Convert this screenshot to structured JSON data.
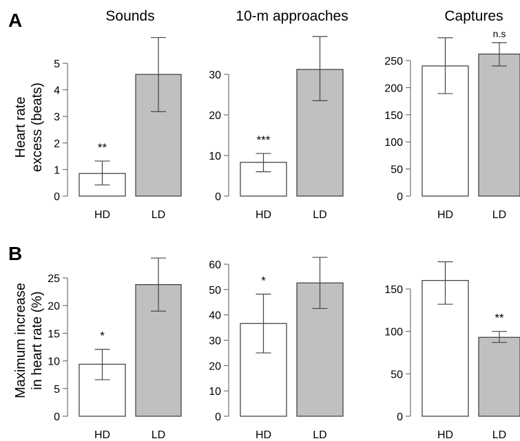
{
  "panel_letters": [
    "A",
    "B"
  ],
  "row_labels": {
    "A": [
      "Heart rate",
      "excess (beats)"
    ],
    "B": [
      "Maximum increase",
      "in heart rate (%)"
    ]
  },
  "column_titles": [
    "Sounds",
    "10-m approaches",
    "Captures"
  ],
  "colors": {
    "hd_fill": "#ffffff",
    "ld_fill": "#c0c0c0",
    "outline": "#444444",
    "error_bar": "#444444"
  },
  "chart_data": [
    {
      "type": "bar",
      "row": "A",
      "column": "Sounds",
      "title": "Sounds",
      "categories": [
        "HD",
        "LD"
      ],
      "values": [
        0.85,
        4.58
      ],
      "error_low": [
        0.42,
        3.18
      ],
      "error_high": [
        1.32,
        5.97
      ],
      "annotations": [
        "**",
        ""
      ],
      "ylim": [
        0,
        5
      ],
      "yticks": [
        0,
        1,
        2,
        3,
        4,
        5
      ],
      "ylabel": "Heart rate excess (beats)",
      "grid": false
    },
    {
      "type": "bar",
      "row": "A",
      "column": "10-m approaches",
      "title": "10-m approaches",
      "categories": [
        "HD",
        "LD"
      ],
      "values": [
        8.3,
        31.2
      ],
      "error_low": [
        6.0,
        23.5
      ],
      "error_high": [
        10.5,
        39.3
      ],
      "annotations": [
        "***",
        ""
      ],
      "ylim": [
        0,
        30
      ],
      "yticks": [
        0,
        10,
        20,
        30
      ],
      "grid": false
    },
    {
      "type": "bar",
      "row": "A",
      "column": "Captures",
      "title": "Captures",
      "categories": [
        "HD",
        "LD"
      ],
      "values": [
        240,
        262
      ],
      "error_low": [
        189,
        240
      ],
      "error_high": [
        292,
        283
      ],
      "annotations": [
        "",
        "n.s"
      ],
      "ylim": [
        0,
        250
      ],
      "yticks": [
        0,
        50,
        100,
        150,
        200,
        250
      ],
      "grid": false
    },
    {
      "type": "bar",
      "row": "B",
      "column": "Sounds",
      "categories": [
        "HD",
        "LD"
      ],
      "values": [
        9.4,
        23.8
      ],
      "error_low": [
        6.6,
        19.0
      ],
      "error_high": [
        12.1,
        28.6
      ],
      "annotations": [
        "*",
        ""
      ],
      "ylim": [
        0,
        25
      ],
      "yticks": [
        0,
        5,
        10,
        15,
        20,
        25
      ],
      "ylabel": "Maximum increase in heart rate (%)",
      "grid": false
    },
    {
      "type": "bar",
      "row": "B",
      "column": "10-m approaches",
      "categories": [
        "HD",
        "LD"
      ],
      "values": [
        36.6,
        52.6
      ],
      "error_low": [
        25.0,
        42.5
      ],
      "error_high": [
        48.2,
        62.7
      ],
      "annotations": [
        "*",
        ""
      ],
      "ylim": [
        0,
        60
      ],
      "yticks": [
        0,
        10,
        20,
        30,
        40,
        50,
        60
      ],
      "grid": false
    },
    {
      "type": "bar",
      "row": "B",
      "column": "Captures",
      "categories": [
        "HD",
        "LD"
      ],
      "values": [
        160,
        93
      ],
      "error_low": [
        132,
        87
      ],
      "error_high": [
        182,
        100
      ],
      "annotations": [
        "",
        "**"
      ],
      "ylim": [
        0,
        150
      ],
      "yticks": [
        0,
        50,
        100,
        150
      ],
      "grid": false
    }
  ]
}
